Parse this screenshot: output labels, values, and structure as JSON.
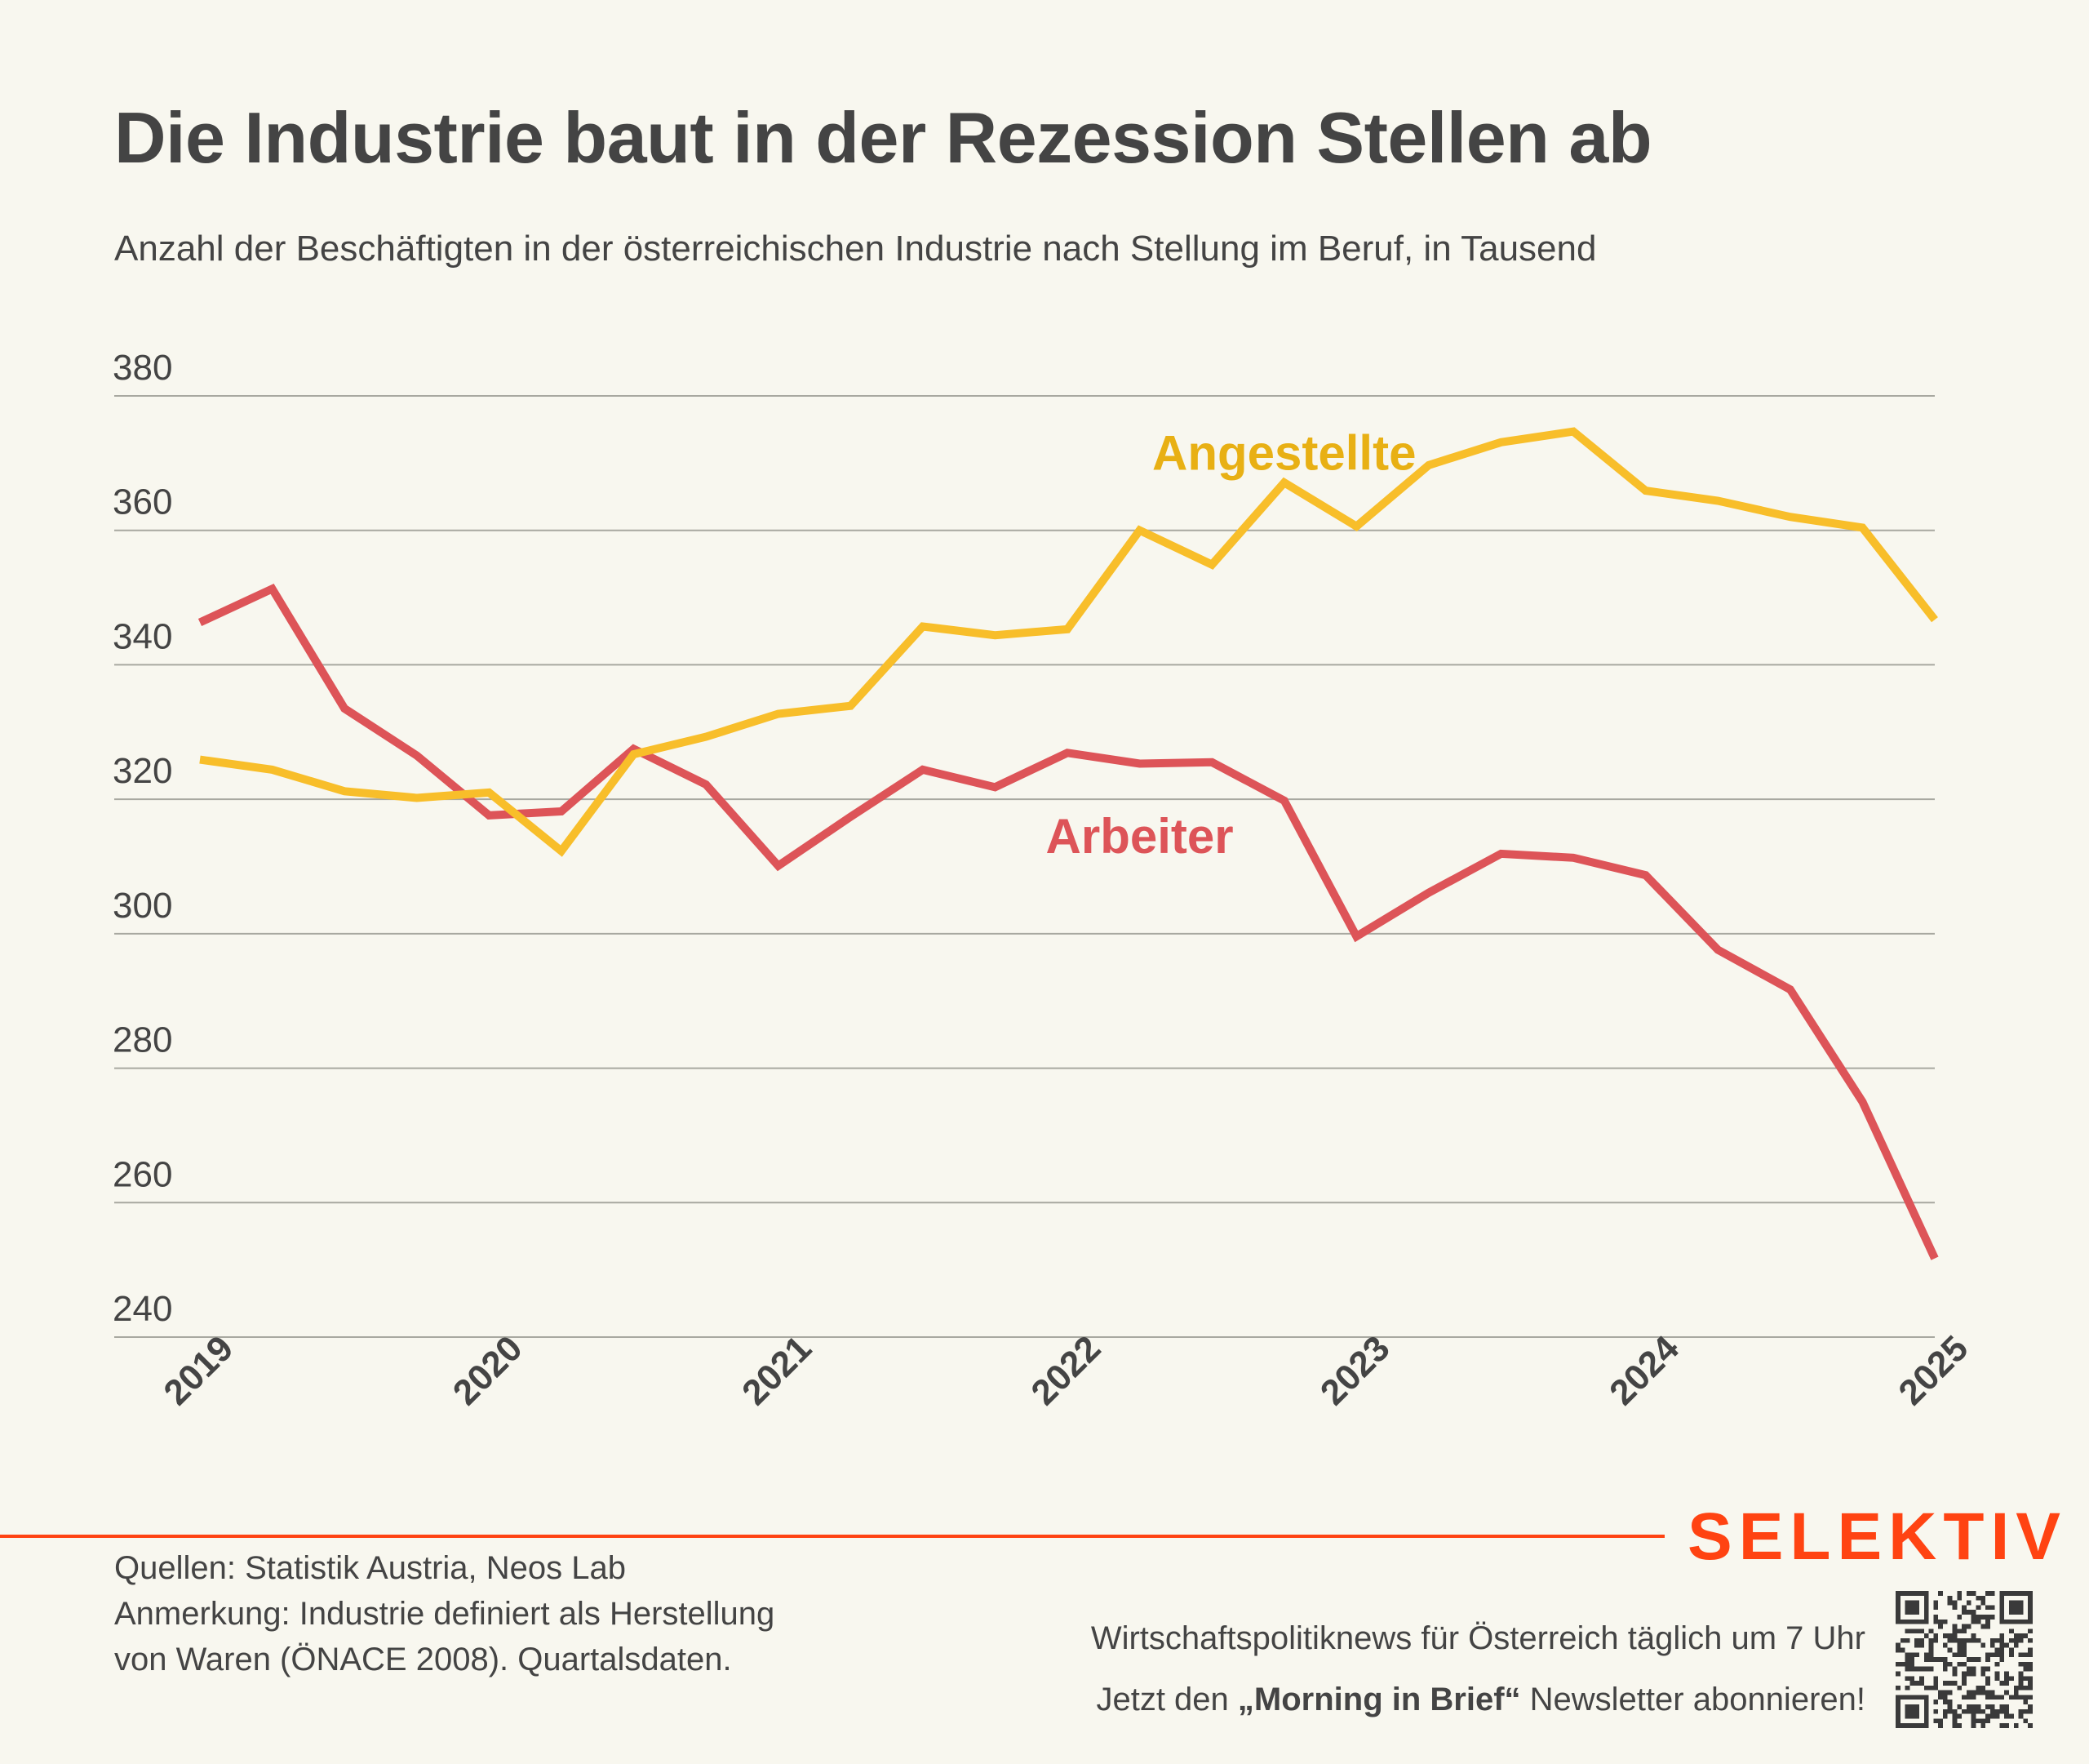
{
  "header": {
    "title": "Die Industrie baut in der Rezession Stellen ab",
    "subtitle": "Anzahl der Beschäftigten in der österreichischen Industrie nach Stellung im Beruf, in Tausend"
  },
  "colors": {
    "background": "#F8F7EF",
    "text": "#444444",
    "grid": "#A8A8A0",
    "angestellte": "#F8BE2A",
    "angestellte_label": "#E8B014",
    "arbeiter": "#DD5458",
    "brand": "#FF4312"
  },
  "chart_data": {
    "type": "line",
    "title": "Die Industrie baut in der Rezession Stellen ab",
    "subtitle": "Anzahl der Beschäftigten in der österreichischen Industrie nach Stellung im Beruf, in Tausend",
    "xlabel": "",
    "ylabel": "",
    "unit": "Tausend",
    "frequency": "quarterly",
    "x": [
      "2019Q1",
      "2019Q2",
      "2019Q3",
      "2019Q4",
      "2020Q1",
      "2020Q2",
      "2020Q3",
      "2020Q4",
      "2021Q1",
      "2021Q2",
      "2021Q3",
      "2021Q4",
      "2022Q1",
      "2022Q2",
      "2022Q3",
      "2022Q4",
      "2023Q1",
      "2023Q2",
      "2023Q3",
      "2023Q4",
      "2024Q1",
      "2024Q2",
      "2024Q3",
      "2024Q4",
      "2025Q1"
    ],
    "x_tick_labels": [
      "2019",
      "2020",
      "2021",
      "2022",
      "2023",
      "2024",
      "2025"
    ],
    "x_tick_index": [
      0,
      4,
      8,
      12,
      16,
      20,
      24
    ],
    "yticks": [
      380,
      360,
      340,
      320,
      300,
      280,
      260,
      240
    ],
    "ylim": [
      240,
      380
    ],
    "grid": true,
    "legend": "inline labels",
    "series": [
      {
        "name": "Angestellte",
        "values": [
          325.9,
          324.4,
          321.2,
          320.2,
          321.0,
          312.3,
          326.7,
          329.3,
          332.7,
          333.9,
          345.7,
          344.4,
          345.3,
          360.0,
          354.9,
          367.1,
          360.6,
          369.7,
          373.1,
          374.7,
          365.9,
          364.4,
          362.0,
          360.4,
          346.7
        ],
        "label_anchor": {
          "x_index": 15,
          "value": 369
        }
      },
      {
        "name": "Arbeiter",
        "values": [
          346.3,
          351.3,
          333.5,
          326.5,
          317.6,
          318.2,
          327.5,
          322.2,
          310.1,
          317.4,
          324.4,
          321.8,
          326.9,
          325.3,
          325.5,
          319.8,
          299.6,
          306.1,
          311.9,
          311.3,
          308.7,
          297.6,
          291.7,
          275.0,
          251.7
        ],
        "label_anchor": {
          "x_index": 13,
          "value": 312
        }
      }
    ]
  },
  "footer": {
    "brand": "SELEKTIV",
    "sources": "Quellen: Statistik Austria, Neos Lab",
    "note_line1": "Anmerkung: Industrie definiert als Herstellung",
    "note_line2": "von Waren (ÖNACE 2008). Quartalsdaten.",
    "promo_line1": "Wirtschaftspolitiknews für Österreich täglich um 7 Uhr",
    "promo_line2_pre": "Jetzt den ",
    "promo_line2_bold": "„Morning in Brief“",
    "promo_line2_post": " Newsletter abonnieren!",
    "qr_icon": "qr-code-icon"
  }
}
